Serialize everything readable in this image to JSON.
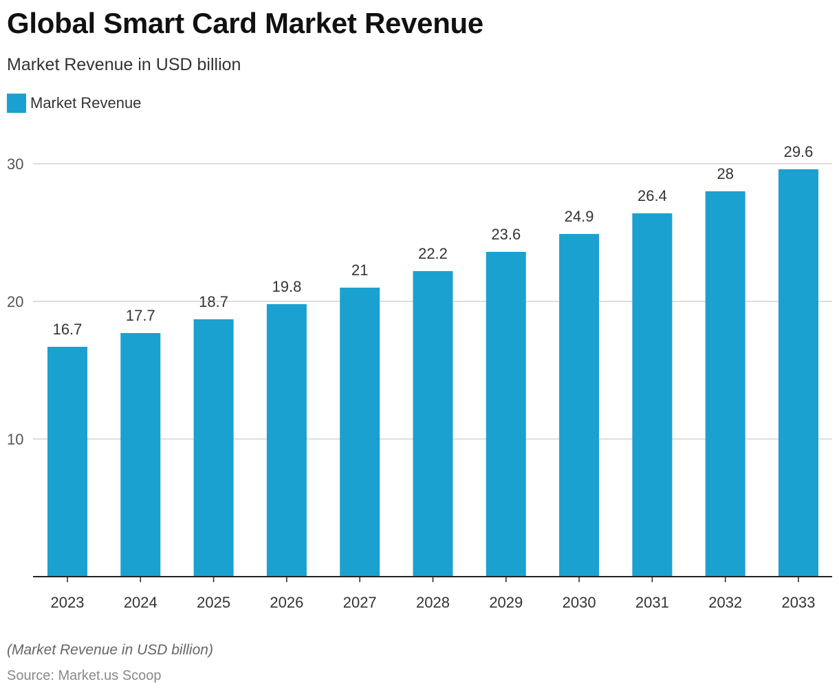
{
  "header": {
    "title": "Global Smart Card Market Revenue",
    "subtitle": "Market Revenue in USD billion"
  },
  "legend": {
    "label": "Market Revenue",
    "color": "#1ba1cf"
  },
  "footer": {
    "note": "(Market Revenue in USD billion)",
    "source": "Source: Market.us Scoop"
  },
  "chart_data": {
    "type": "bar",
    "title": "Global Smart Card Market Revenue",
    "subtitle": "Market Revenue in USD billion",
    "categories": [
      "2023",
      "2024",
      "2025",
      "2026",
      "2027",
      "2028",
      "2029",
      "2030",
      "2031",
      "2032",
      "2033"
    ],
    "series": [
      {
        "name": "Market Revenue",
        "color": "#1ba1cf",
        "values": [
          16.7,
          17.7,
          18.7,
          19.8,
          21,
          22.2,
          23.6,
          24.9,
          26.4,
          28,
          29.6
        ]
      }
    ],
    "data_labels": [
      "16.7",
      "17.7",
      "18.7",
      "19.8",
      "21",
      "22.2",
      "23.6",
      "24.9",
      "26.4",
      "28",
      "29.6"
    ],
    "yticks": [
      10,
      20,
      30
    ],
    "ylim": [
      0,
      30
    ],
    "grid": true,
    "legend_position": "top-left"
  }
}
